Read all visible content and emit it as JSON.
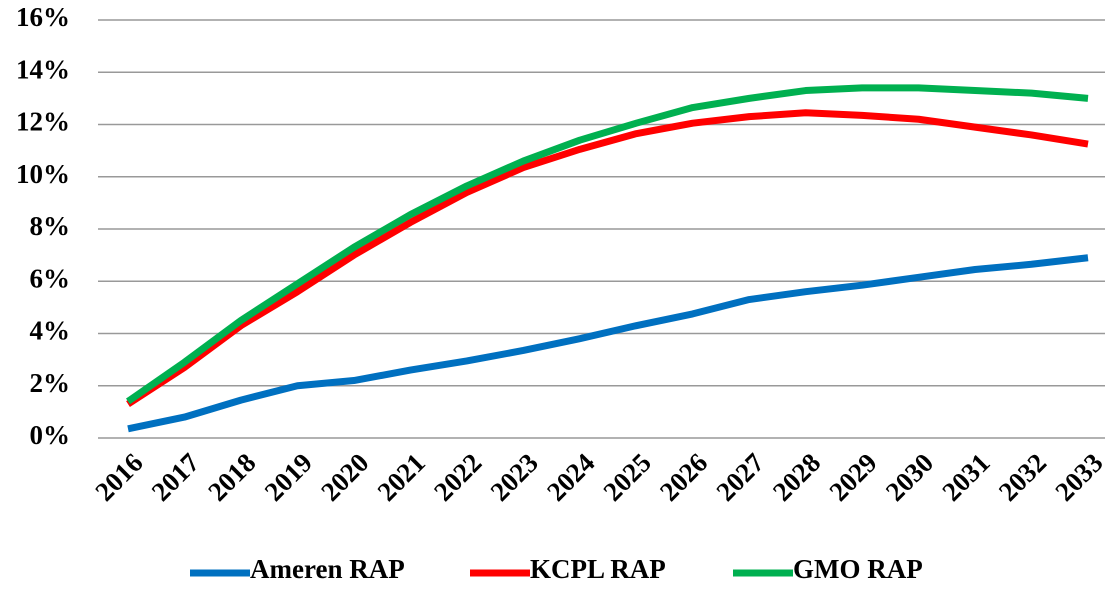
{
  "chart_data": {
    "type": "line",
    "categories": [
      "2016",
      "2017",
      "2018",
      "2019",
      "2020",
      "2021",
      "2022",
      "2023",
      "2024",
      "2025",
      "2026",
      "2027",
      "2028",
      "2029",
      "2030",
      "2031",
      "2032",
      "2033"
    ],
    "series": [
      {
        "name": "Ameren RAP",
        "color": "#0070c0",
        "values": [
          0.35,
          0.8,
          1.45,
          2.0,
          2.2,
          2.6,
          2.95,
          3.35,
          3.8,
          4.3,
          4.75,
          5.3,
          5.6,
          5.85,
          6.15,
          6.45,
          6.65,
          6.9
        ]
      },
      {
        "name": "KCPL RAP",
        "color": "#ff0000",
        "values": [
          1.3,
          2.7,
          4.3,
          5.6,
          7.0,
          8.25,
          9.4,
          10.35,
          11.05,
          11.65,
          12.05,
          12.3,
          12.45,
          12.35,
          12.2,
          11.9,
          11.6,
          11.25
        ]
      },
      {
        "name": "GMO RAP",
        "color": "#00b050",
        "values": [
          1.4,
          2.9,
          4.5,
          5.9,
          7.3,
          8.55,
          9.65,
          10.6,
          11.4,
          12.05,
          12.65,
          13.0,
          13.3,
          13.4,
          13.4,
          13.3,
          13.2,
          13.0
        ]
      }
    ],
    "ylim": [
      0,
      16
    ],
    "yticks": [
      {
        "value": 0,
        "label": "0%"
      },
      {
        "value": 2,
        "label": "2%"
      },
      {
        "value": 4,
        "label": "4%"
      },
      {
        "value": 6,
        "label": "6%"
      },
      {
        "value": 8,
        "label": "8%"
      },
      {
        "value": 10,
        "label": "10%"
      },
      {
        "value": 12,
        "label": "12%"
      },
      {
        "value": 14,
        "label": "14%"
      },
      {
        "value": 16,
        "label": "16%"
      }
    ],
    "grid": true,
    "legend": "bottom"
  }
}
